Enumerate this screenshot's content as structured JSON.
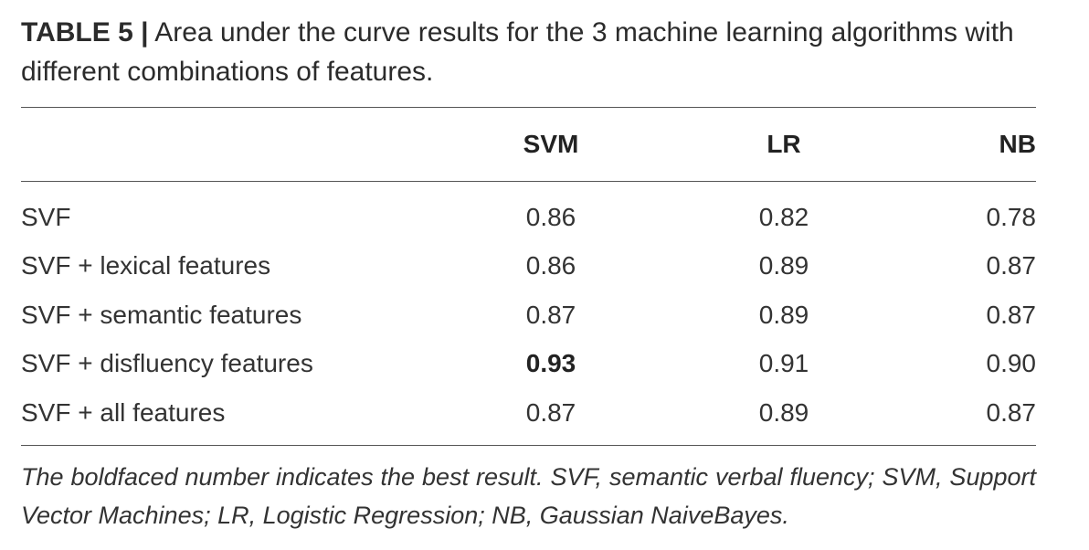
{
  "caption": {
    "label": "TABLE 5",
    "separator": "|",
    "text": "Area under the curve results for the 3 machine learning algorithms with different combinations of features."
  },
  "table": {
    "columns": [
      "",
      "SVM",
      "LR",
      "NB"
    ],
    "rows": [
      {
        "label": "SVF",
        "svm": "0.86",
        "lr": "0.82",
        "nb": "0.78"
      },
      {
        "label": "SVF + lexical features",
        "svm": "0.86",
        "lr": "0.89",
        "nb": "0.87"
      },
      {
        "label": "SVF + semantic features",
        "svm": "0.87",
        "lr": "0.89",
        "nb": "0.87"
      },
      {
        "label": "SVF + disfluency features",
        "svm": "0.93",
        "lr": "0.91",
        "nb": "0.90",
        "best": "svm"
      },
      {
        "label": "SVF + all features",
        "svm": "0.87",
        "lr": "0.89",
        "nb": "0.87"
      }
    ]
  },
  "footnote": "The boldfaced number indicates the best result. SVF, semantic verbal fluency; SVM, Support Vector Machines; LR, Logistic Regression; NB, Gaussian NaiveBayes.",
  "colors": {
    "text": "#2b2b2b",
    "rule": "#555555"
  }
}
